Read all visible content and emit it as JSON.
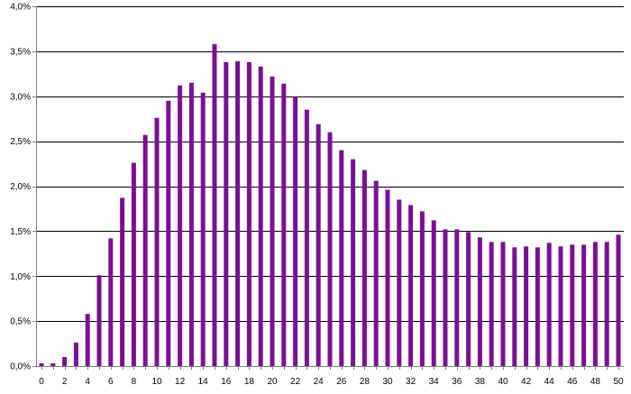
{
  "chart_data": {
    "type": "bar",
    "title": "",
    "xlabel": "",
    "ylabel": "",
    "ylim": [
      0,
      4.0
    ],
    "y_ticks": [
      0,
      0.5,
      1.0,
      1.5,
      2.0,
      2.5,
      3.0,
      3.5,
      4.0
    ],
    "y_tick_labels": [
      "0,0%",
      "0,5%",
      "1,0%",
      "1,5%",
      "2,0%",
      "2,5%",
      "3,0%",
      "3,5%",
      "4,0%"
    ],
    "x_tick_labels": [
      "0",
      "2",
      "4",
      "6",
      "8",
      "10",
      "12",
      "14",
      "16",
      "18",
      "20",
      "22",
      "24",
      "26",
      "28",
      "30",
      "32",
      "34",
      "36",
      "38",
      "40",
      "42",
      "44",
      "46",
      "48",
      "50"
    ],
    "grid": "horizontal",
    "colors": {
      "bar": "#7b0f96",
      "grid": "#000000",
      "axis": "#808080"
    },
    "categories": [
      0,
      1,
      2,
      3,
      4,
      5,
      6,
      7,
      8,
      9,
      10,
      11,
      12,
      13,
      14,
      15,
      16,
      17,
      18,
      19,
      20,
      21,
      22,
      23,
      24,
      25,
      26,
      27,
      28,
      29,
      30,
      31,
      32,
      33,
      34,
      35,
      36,
      37,
      38,
      39,
      40,
      41,
      42,
      43,
      44,
      45,
      46,
      47,
      48,
      49,
      50
    ],
    "values": [
      0.03,
      0.03,
      0.1,
      0.26,
      0.58,
      1.01,
      1.42,
      1.87,
      2.26,
      2.57,
      2.76,
      2.95,
      3.12,
      3.15,
      3.04,
      3.58,
      3.38,
      3.39,
      3.38,
      3.33,
      3.22,
      3.14,
      2.99,
      2.85,
      2.69,
      2.6,
      2.4,
      2.3,
      2.18,
      2.06,
      1.96,
      1.85,
      1.79,
      1.72,
      1.62,
      1.52,
      1.52,
      1.49,
      1.43,
      1.38,
      1.38,
      1.32,
      1.33,
      1.32,
      1.37,
      1.33,
      1.35,
      1.35,
      1.38,
      1.38,
      1.46
    ]
  }
}
